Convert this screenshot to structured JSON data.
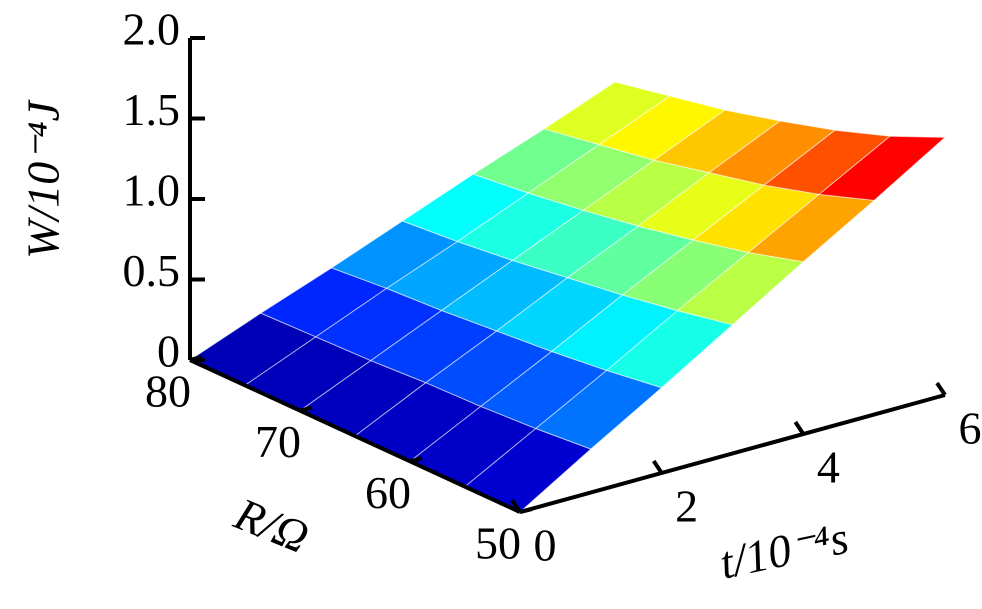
{
  "chart_data": {
    "type": "surface",
    "x_label": "t/10⁻⁴s",
    "y_label": "R/Ω",
    "z_label": "W/10⁻⁴J",
    "x": [
      0,
      1,
      2,
      3,
      4,
      5,
      6
    ],
    "y": [
      50,
      55,
      60,
      65,
      70,
      75,
      80
    ],
    "z": [
      [
        0,
        0.27,
        0.53,
        0.8,
        1.07,
        1.33,
        1.6
      ],
      [
        0,
        0.24,
        0.48,
        0.73,
        0.97,
        1.21,
        1.45
      ],
      [
        0,
        0.22,
        0.44,
        0.67,
        0.89,
        1.11,
        1.33
      ],
      [
        0,
        0.21,
        0.41,
        0.62,
        0.82,
        1.03,
        1.23
      ],
      [
        0,
        0.19,
        0.38,
        0.57,
        0.76,
        0.95,
        1.14
      ],
      [
        0,
        0.18,
        0.36,
        0.53,
        0.71,
        0.89,
        1.07
      ],
      [
        0,
        0.17,
        0.33,
        0.5,
        0.67,
        0.83,
        1.0
      ]
    ],
    "xlim": [
      0,
      6
    ],
    "xticks": [
      0,
      2,
      4,
      6
    ],
    "ylim": [
      50,
      80
    ],
    "yticks": [
      50,
      60,
      70,
      80
    ],
    "zlim": [
      0,
      2
    ],
    "zticks": [
      0,
      0.5,
      {
        "value": 1,
        "label": "1.0"
      },
      1.5,
      {
        "value": 2,
        "label": "2.0"
      }
    ],
    "colormap": "jet"
  }
}
